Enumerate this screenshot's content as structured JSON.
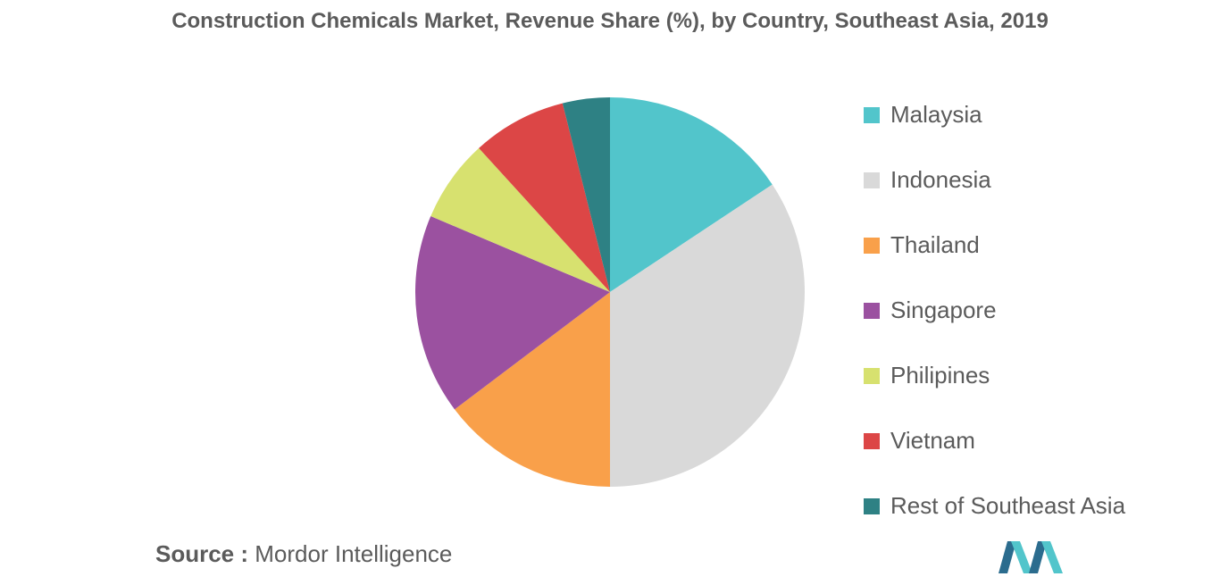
{
  "chart_data": {
    "type": "pie",
    "title": "Construction Chemicals Market, Revenue Share (%), by Country, Southeast Asia, 2019",
    "legend_position": "right",
    "slices": [
      {
        "name": "Malaysia",
        "value": 16,
        "color": "#52c5cb"
      },
      {
        "name": "Indonesia",
        "value": 35,
        "color": "#d9d9d9"
      },
      {
        "name": "Thailand",
        "value": 15,
        "color": "#f9a04a"
      },
      {
        "name": "Singapore",
        "value": 17,
        "color": "#9b51a0"
      },
      {
        "name": "Philipines",
        "value": 7,
        "color": "#d7e16f"
      },
      {
        "name": "Vietnam",
        "value": 8,
        "color": "#dc4646"
      },
      {
        "name": "Rest of Southeast Asia",
        "value": 4,
        "color": "#2e8184"
      }
    ]
  },
  "footer": {
    "source_prefix": "Source :",
    "source_name": "Mordor Intelligence"
  },
  "logo": {
    "icon": "mordor-intelligence-logo-icon",
    "colors": [
      "#2b6c8e",
      "#52c5cb"
    ]
  }
}
